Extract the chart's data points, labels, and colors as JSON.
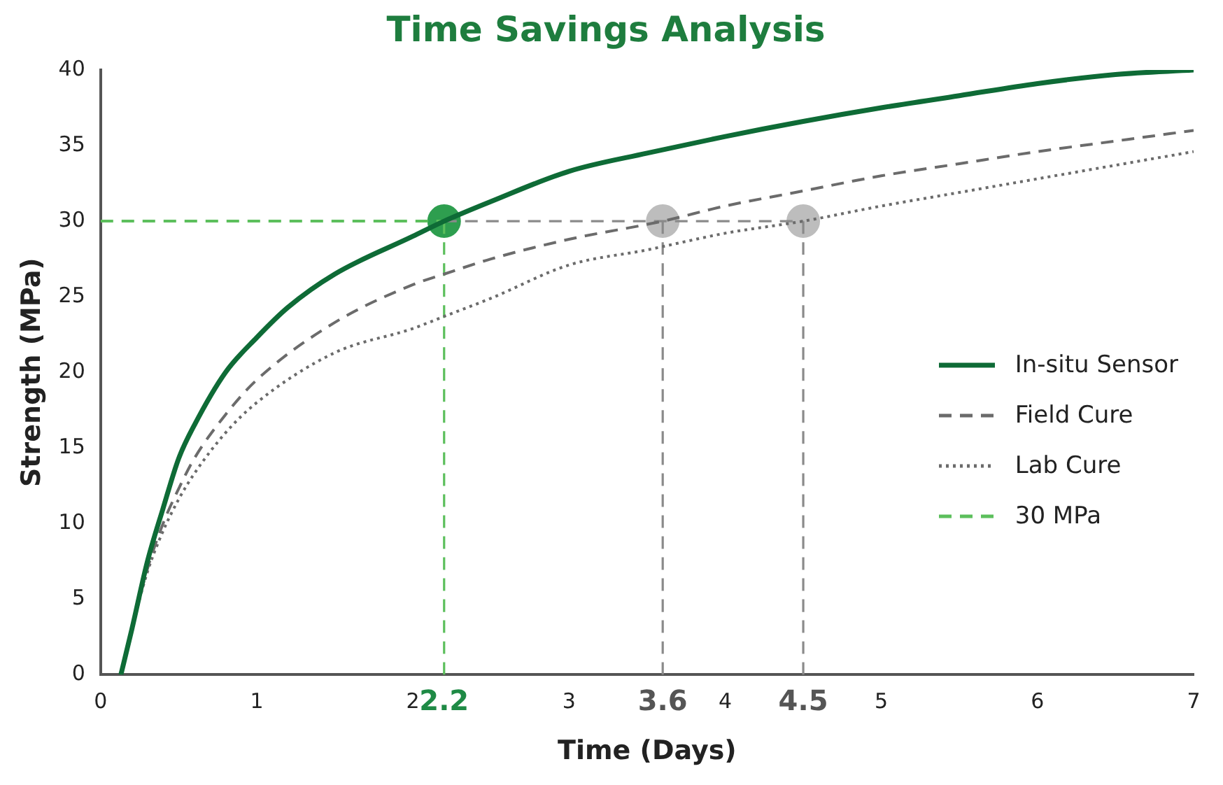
{
  "chart_data": {
    "type": "line",
    "title": "Time Savings Analysis",
    "xlabel": "Time (Days)",
    "ylabel": "Strength (MPa)",
    "xlim": [
      0,
      7
    ],
    "xticks": [
      0,
      1,
      2,
      3,
      4,
      5,
      6,
      7
    ],
    "ylim": [
      0,
      40
    ],
    "yticks": [
      0,
      5,
      10,
      15,
      20,
      25,
      30,
      35,
      40
    ],
    "grid": false,
    "legend": "right",
    "marker": "none",
    "series": [
      {
        "name": "In-situ Sensor",
        "color": "#0e6b36",
        "line_style": "solid",
        "x": [
          0.13,
          0.2,
          0.3,
          0.4,
          0.5,
          0.6,
          0.8,
          1.0,
          1.2,
          1.5,
          2.0,
          2.2,
          2.5,
          3.0,
          3.5,
          4.0,
          4.5,
          5.0,
          5.5,
          6.0,
          6.5,
          7.0
        ],
        "values": [
          0,
          3,
          7.5,
          11,
          14.3,
          16.5,
          20,
          22.3,
          24.3,
          26.5,
          29,
          30,
          31.3,
          33.3,
          34.5,
          35.6,
          36.6,
          37.5,
          38.3,
          39.1,
          39.7,
          40
        ]
      },
      {
        "name": "Field Cure",
        "color": "#6b6b6b",
        "line_style": "dashed",
        "x": [
          0.13,
          0.2,
          0.3,
          0.4,
          0.5,
          0.6,
          0.8,
          1.0,
          1.5,
          2.0,
          2.2,
          2.5,
          3.0,
          3.6,
          4.0,
          4.5,
          5.0,
          5.5,
          6.0,
          6.5,
          7.0
        ],
        "values": [
          0,
          3,
          7,
          10,
          12.3,
          14.3,
          17.2,
          19.5,
          23.3,
          25.8,
          26.5,
          27.5,
          28.8,
          30,
          31,
          32,
          33,
          33.8,
          34.6,
          35.3,
          36
        ]
      },
      {
        "name": "Lab Cure",
        "color": "#6b6b6b",
        "line_style": "dotted",
        "x": [
          0.13,
          0.2,
          0.3,
          0.4,
          0.5,
          0.6,
          0.8,
          1.0,
          1.5,
          2.0,
          2.2,
          2.5,
          3.0,
          3.5,
          4.0,
          4.5,
          5.0,
          5.5,
          6.0,
          6.5,
          7.0
        ],
        "values": [
          0,
          3,
          6.8,
          9.5,
          11.6,
          13.3,
          16,
          18,
          21.3,
          22.9,
          23.7,
          24.9,
          27.1,
          28.1,
          29.2,
          30,
          31,
          31.9,
          32.8,
          33.7,
          34.6
        ]
      },
      {
        "name": "30 MPa",
        "color": "#5cbf5c",
        "line_style": "dashed",
        "x": [
          0,
          2.2
        ],
        "values": [
          30,
          30
        ]
      },
      {
        "color": "#5cbf5c",
        "line_style": "dashed",
        "x": [
          2.2,
          2.2
        ],
        "values": [
          0,
          30
        ]
      },
      {
        "color": "#8a8a8a",
        "line_style": "dashed",
        "x": [
          2.2,
          4.5
        ],
        "values": [
          30,
          30
        ]
      },
      {
        "color": "#8a8a8a",
        "line_style": "dashed",
        "x": [
          3.6,
          3.6
        ],
        "values": [
          0,
          30
        ]
      },
      {
        "color": "#8a8a8a",
        "line_style": "dashed",
        "x": [
          4.5,
          4.5
        ],
        "values": [
          0,
          30
        ]
      },
      {
        "type": "scatter",
        "marker": "circle",
        "colors": [
          "#2e9e4f",
          "#bdbdbd",
          "#bdbdbd"
        ],
        "x": [
          2.2,
          3.6,
          4.5
        ],
        "values": [
          30,
          30,
          30
        ]
      }
    ],
    "annotations": [
      {
        "text": "2.2",
        "x": 2.2,
        "y": 0
      },
      {
        "text": "3.6",
        "x": 3.6,
        "y": 0
      },
      {
        "text": "4.5",
        "x": 4.5,
        "y": 0
      }
    ]
  }
}
